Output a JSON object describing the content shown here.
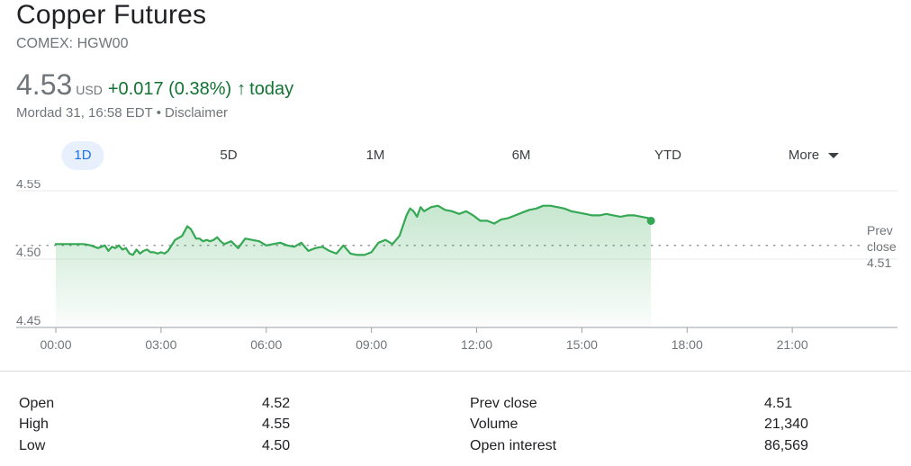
{
  "header": {
    "title": "Copper Futures",
    "ticker": "COMEX: HGW00",
    "price": "4.53",
    "currency": "USD",
    "change": "+0.017 (0.38%)",
    "change_arrow_icon": "arrow-up-icon",
    "change_period": "today",
    "timestamp": "Mordad 31, 16:58 EDT",
    "separator": "•",
    "disclaimer": "Disclaimer"
  },
  "tabs": [
    {
      "label": "1D",
      "active": true
    },
    {
      "label": "5D",
      "active": false
    },
    {
      "label": "1M",
      "active": false
    },
    {
      "label": "6M",
      "active": false
    },
    {
      "label": "YTD",
      "active": false
    },
    {
      "label": "More",
      "active": false
    }
  ],
  "colors": {
    "line": "#34a853",
    "fill": "#34a853",
    "positive": "#137333",
    "active_tab_bg": "#e8f0fe",
    "active_tab_text": "#1a73e8"
  },
  "chart_data": {
    "type": "area",
    "x_label_ticks": [
      "00:00",
      "03:00",
      "06:00",
      "09:00",
      "12:00",
      "15:00",
      "18:00",
      "21:00"
    ],
    "x_range_hours": [
      0,
      24
    ],
    "y_tick_labels": [
      "4.55",
      "4.50",
      "4.45"
    ],
    "y_ticks": [
      4.55,
      4.5,
      4.45
    ],
    "ylim": [
      4.45,
      4.55
    ],
    "prev_close": 4.51,
    "prev_close_label": [
      "Prev",
      "close",
      "4.51"
    ],
    "grid": "horizontal",
    "series": [
      {
        "x": [
          0,
          0.2,
          0.5,
          0.8,
          1.0,
          1.2,
          1.4,
          1.5,
          1.6,
          1.7,
          1.8,
          1.9,
          2.0,
          2.1,
          2.2,
          2.3,
          2.4,
          2.5,
          2.6,
          2.7,
          2.8,
          2.9,
          3.0,
          3.1,
          3.2,
          3.4,
          3.6,
          3.75,
          3.85,
          4.0,
          4.1,
          4.2,
          4.3,
          4.4,
          4.5,
          4.6,
          4.7,
          4.8,
          5.0,
          5.2,
          5.4,
          5.6,
          5.8,
          6.0,
          6.2,
          6.4,
          6.6,
          6.8,
          7.0,
          7.2,
          7.4,
          7.6,
          7.8,
          8.0,
          8.2,
          8.4,
          8.6,
          8.8,
          9.0,
          9.2,
          9.4,
          9.6,
          9.8,
          10.0,
          10.1,
          10.2,
          10.3,
          10.4,
          10.5,
          10.7,
          10.9,
          11.1,
          11.3,
          11.5,
          11.7,
          11.9,
          12.1,
          12.3,
          12.5,
          12.7,
          12.9,
          13.1,
          13.3,
          13.5,
          13.7,
          13.9,
          14.1,
          14.3,
          14.5,
          14.7,
          14.9,
          15.1,
          15.3,
          15.5,
          15.7,
          15.9,
          16.1,
          16.3,
          16.5,
          16.7,
          16.9,
          16.97
        ],
        "values": [
          4.511,
          4.511,
          4.511,
          4.511,
          4.51,
          4.508,
          4.51,
          4.506,
          4.509,
          4.508,
          4.51,
          4.507,
          4.508,
          4.504,
          4.503,
          4.507,
          4.504,
          4.506,
          4.507,
          4.505,
          4.505,
          4.504,
          4.505,
          4.504,
          4.506,
          4.514,
          4.517,
          4.524,
          4.522,
          4.515,
          4.515,
          4.513,
          4.514,
          4.513,
          4.514,
          4.516,
          4.513,
          4.511,
          4.513,
          4.508,
          4.515,
          4.514,
          4.513,
          4.51,
          4.511,
          4.512,
          4.51,
          4.509,
          4.512,
          4.506,
          4.508,
          4.509,
          4.506,
          4.504,
          4.51,
          4.504,
          4.503,
          4.503,
          4.505,
          4.512,
          4.514,
          4.511,
          4.517,
          4.532,
          4.537,
          4.535,
          4.531,
          4.538,
          4.535,
          4.538,
          4.539,
          4.536,
          4.535,
          4.533,
          4.535,
          4.532,
          4.528,
          4.528,
          4.526,
          4.529,
          4.53,
          4.532,
          4.534,
          4.536,
          4.537,
          4.539,
          4.539,
          4.538,
          4.537,
          4.535,
          4.534,
          4.533,
          4.532,
          4.532,
          4.533,
          4.532,
          4.531,
          4.532,
          4.532,
          4.531,
          4.53,
          4.528
        ]
      }
    ]
  },
  "stats": {
    "left": [
      {
        "label": "Open",
        "value": "4.52"
      },
      {
        "label": "High",
        "value": "4.55"
      },
      {
        "label": "Low",
        "value": "4.50"
      }
    ],
    "right": [
      {
        "label": "Prev close",
        "value": "4.51"
      },
      {
        "label": "Volume",
        "value": "21,340"
      },
      {
        "label": "Open interest",
        "value": "86,569"
      }
    ]
  }
}
